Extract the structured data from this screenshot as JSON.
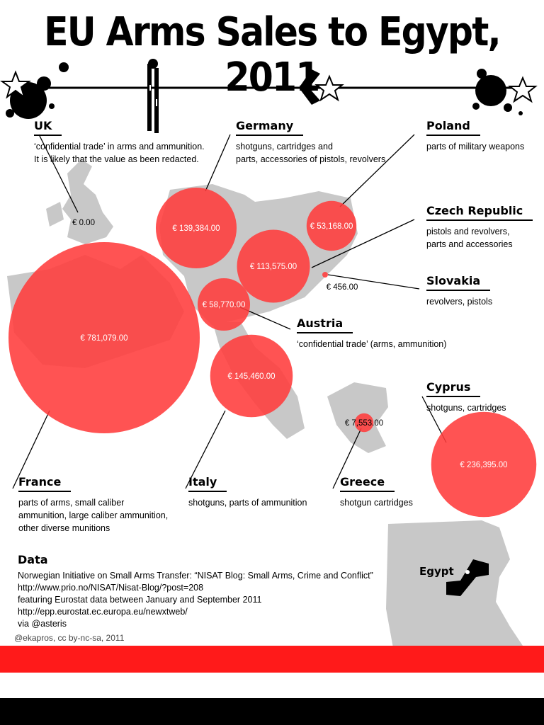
{
  "title": "EU Arms Sales to Egypt, 2011",
  "colors": {
    "bubble": "#ff3b3b",
    "map": "#c8c8c8",
    "band_red": "#ff1a1a",
    "band_black": "#000000"
  },
  "chart_data": {
    "type": "bubble-map",
    "unit": "EUR",
    "countries": [
      {
        "name": "UK",
        "value": 0.0,
        "label": "€ 0.00",
        "description": "‘confidential trade’ in arms and ammunition.\nIt is likely that the value as been redacted."
      },
      {
        "name": "Germany",
        "value": 139384.0,
        "label": "€ 139,384.00",
        "description": "shotguns, cartridges and\nparts, accessories of pistols, revolvers"
      },
      {
        "name": "Poland",
        "value": 53168.0,
        "label": "€ 53,168.00",
        "description": "parts of military weapons"
      },
      {
        "name": "Czech Republic",
        "value": 113575.0,
        "label": "€ 113,575.00",
        "description": "pistols and revolvers,\nparts and accessories"
      },
      {
        "name": "Slovakia",
        "value": 456.0,
        "label": "€ 456.00",
        "description": "revolvers, pistols"
      },
      {
        "name": "Austria",
        "value": 58770.0,
        "label": "€ 58,770.00",
        "description": "‘confidential trade’ (arms, ammunition)"
      },
      {
        "name": "France",
        "value": 781079.0,
        "label": "€ 781,079.00",
        "description": "parts of arms, small caliber\nammunition, large caliber ammunition,\nother diverse munitions"
      },
      {
        "name": "Italy",
        "value": 145460.0,
        "label": "€ 145,460.00",
        "description": "shotguns, parts of ammunition"
      },
      {
        "name": "Greece",
        "value": 7553.0,
        "label": "€ 7,553.00",
        "description": "shotgun cartridges"
      },
      {
        "name": "Cyprus",
        "value": 236395.0,
        "label": "€ 236,395.00",
        "description": "shotguns, cartridges"
      }
    ]
  },
  "egypt_label": "Egypt",
  "data_section": {
    "heading": "Data",
    "lines": [
      "Norwegian Initiative on Small Arms Transfer: “NISAT Blog: Small Arms, Crime and Conflict”",
      "http://www.prio.no/NISAT/Nisat-Blog/?post=208",
      "featuring Eurostat data between January and September 2011",
      "http://epp.eurostat.ec.europa.eu/newxtweb/",
      "via @asteris"
    ]
  },
  "credit": "@ekapros, cc by-nc-sa, 2011"
}
